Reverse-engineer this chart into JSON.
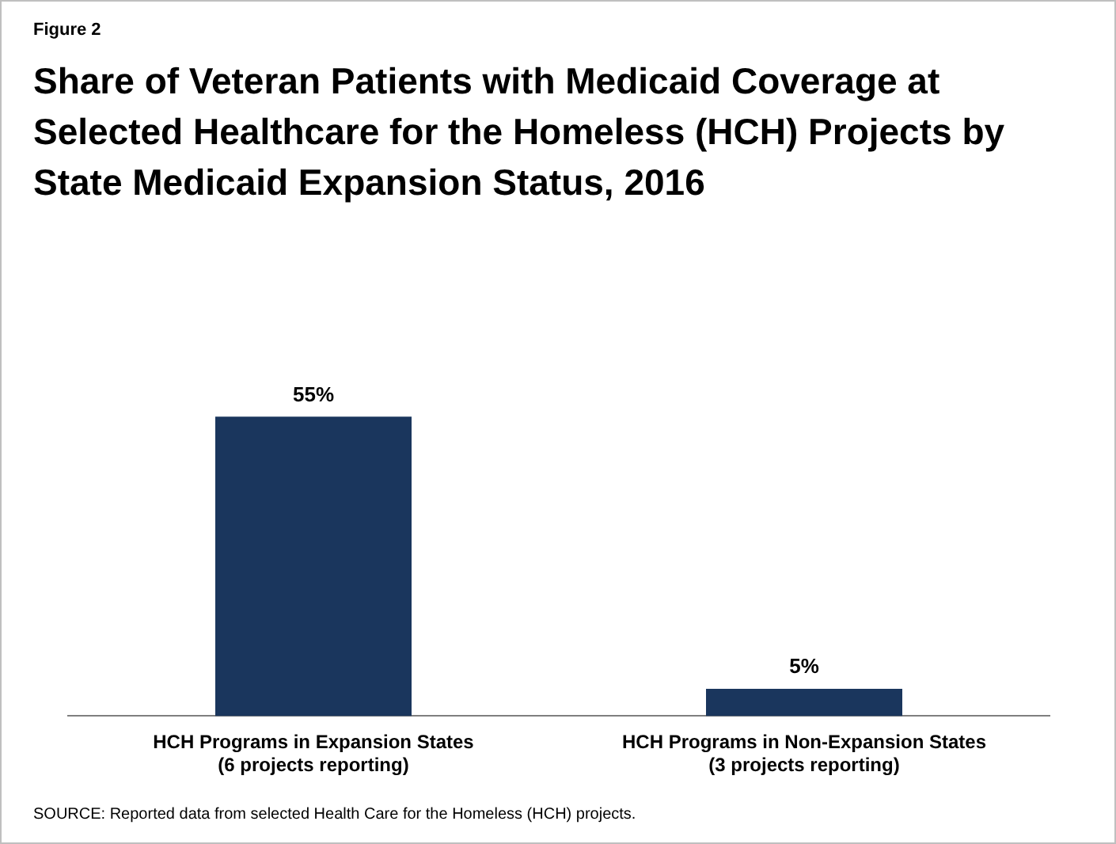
{
  "chart_data": {
    "type": "bar",
    "title": "Share of Veteran Patients with Medicaid Coverage at Selected Healthcare for the Homeless (HCH) Projects by State Medicaid Expansion Status, 2016",
    "categories": [
      "HCH Programs in Expansion States\n(6 projects reporting)",
      "HCH Programs in Non-Expansion States\n(3 projects reporting)"
    ],
    "values": [
      55,
      5
    ],
    "value_labels": [
      "55%",
      "5%"
    ],
    "color": "#1a365d",
    "grid": false,
    "legend": false,
    "tick_labels": "x",
    "annotations": [
      "Figure 2",
      "SOURCE: Reported data from selected Health Care for the Homeless (HCH) projects."
    ]
  }
}
